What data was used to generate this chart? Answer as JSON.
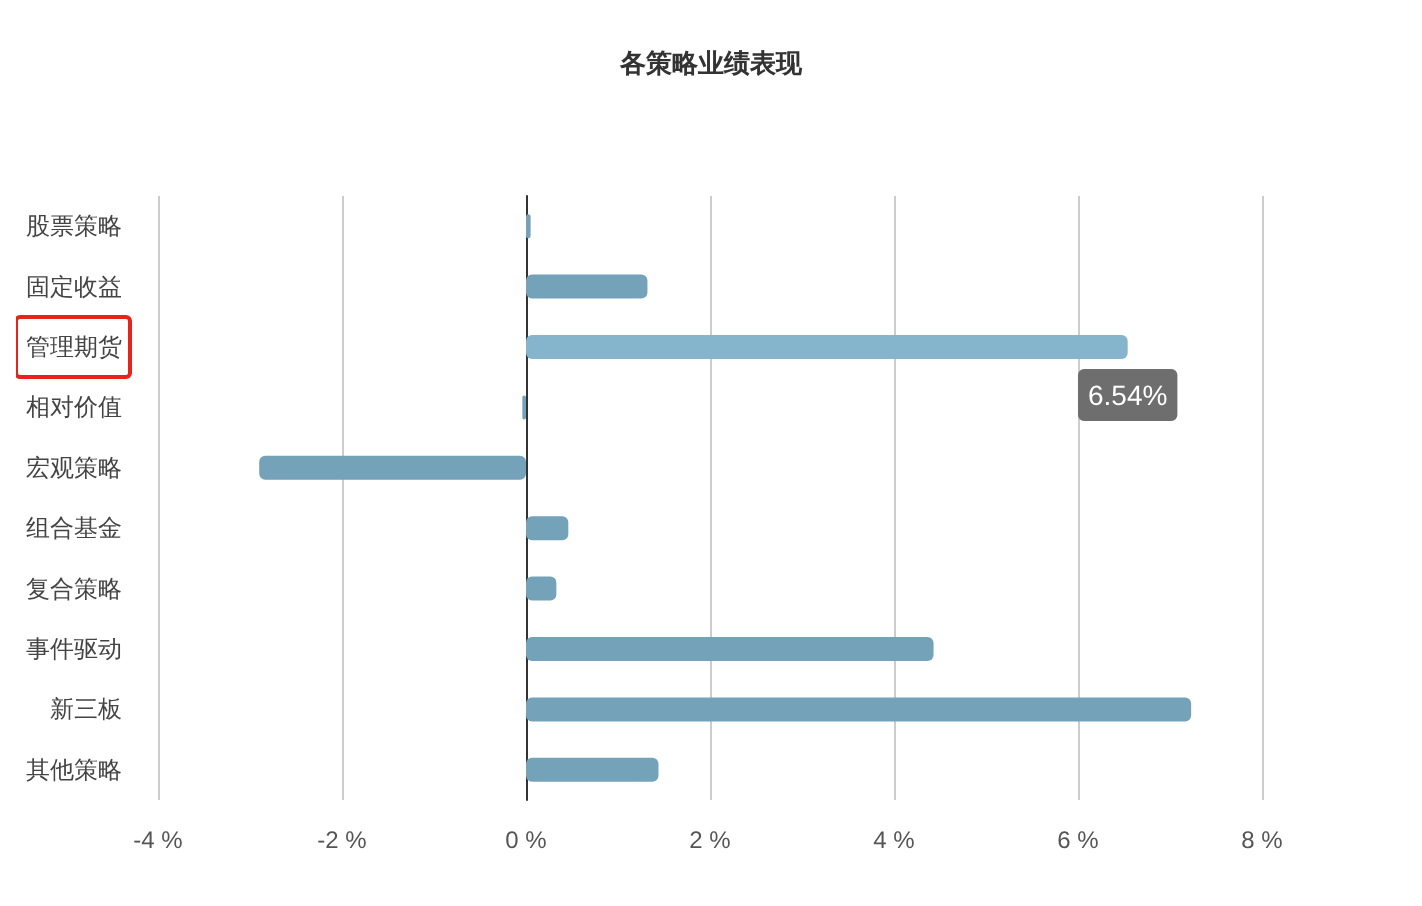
{
  "chart_data": {
    "type": "bar",
    "orientation": "horizontal",
    "title": "各策略业绩表现",
    "categories": [
      "股票策略",
      "固定收益",
      "管理期货",
      "相对价值",
      "宏观策略",
      "组合基金",
      "复合策略",
      "事件驱动",
      "新三板",
      "其他策略"
    ],
    "values": [
      0.05,
      1.32,
      6.54,
      -0.04,
      -2.9,
      0.46,
      0.33,
      4.43,
      7.23,
      1.44
    ],
    "colors": [
      "#74a3b9",
      "#74a3b9",
      "#84b5cc",
      "#74a3b9",
      "#74a3b9",
      "#74a3b9",
      "#74a3b9",
      "#74a3b9",
      "#74a3b9",
      "#74a3b9"
    ],
    "xlim": [
      -4,
      8
    ],
    "xticks": [
      {
        "value": -4,
        "label": "-4 %"
      },
      {
        "value": -2,
        "label": "-2 %"
      },
      {
        "value": 0,
        "label": "0 %"
      },
      {
        "value": 2,
        "label": "2 %"
      },
      {
        "value": 4,
        "label": "4 %"
      },
      {
        "value": 6,
        "label": "6 %"
      },
      {
        "value": 8,
        "label": "8 %"
      }
    ],
    "grid": "x",
    "annotations": [
      {
        "text": "6.54%",
        "x": 6.54,
        "y": "管理期货"
      }
    ]
  }
}
